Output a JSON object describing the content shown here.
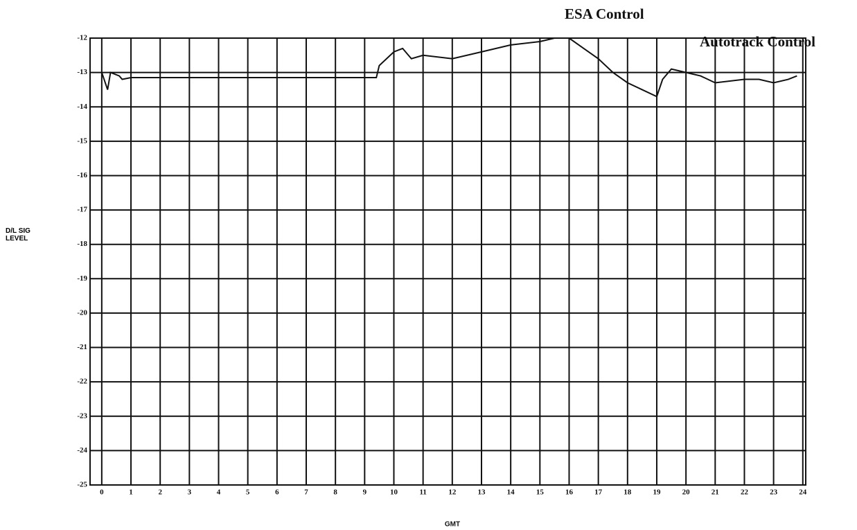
{
  "chart_data": {
    "type": "line",
    "annotations": [
      "ESA Control",
      "Autotrack Control"
    ],
    "xlabel": "GMT",
    "ylabel": "D/L SIG LEVEL",
    "x": [
      0,
      0.2,
      0.3,
      0.6,
      0.7,
      1,
      9.4,
      9.5,
      10,
      10.3,
      10.6,
      11,
      12,
      13,
      14,
      15,
      15.5,
      16,
      16.5,
      17,
      17.5,
      18,
      18.5,
      19,
      19.2,
      19.5,
      20,
      20.5,
      21,
      22,
      22.5,
      23,
      23.5,
      23.8
    ],
    "series": [
      {
        "color": "#111111",
        "values": [
          -13.0,
          -13.5,
          -13.0,
          -13.1,
          -13.2,
          -13.15,
          -13.15,
          -12.8,
          -12.4,
          -12.3,
          -12.6,
          -12.5,
          -12.6,
          -12.4,
          -12.2,
          -12.1,
          -12.0,
          -12.0,
          -12.3,
          -12.6,
          -13.0,
          -13.3,
          -13.5,
          -13.7,
          -13.2,
          -12.9,
          -13.0,
          -13.1,
          -13.3,
          -13.2,
          -13.2,
          -13.3,
          -13.2,
          -13.1
        ]
      }
    ],
    "xlim": [
      -0.4,
      24.1
    ],
    "ylim": [
      -25,
      -12
    ],
    "xticks": [
      0,
      1,
      2,
      3,
      4,
      5,
      6,
      7,
      8,
      9,
      10,
      11,
      12,
      13,
      14,
      15,
      16,
      17,
      18,
      19,
      20,
      21,
      22,
      23,
      24
    ],
    "yticks": [
      -12,
      -13,
      -14,
      -15,
      -16,
      -17,
      -18,
      -19,
      -20,
      -21,
      -22,
      -23,
      -24,
      -25
    ],
    "grid": true
  }
}
